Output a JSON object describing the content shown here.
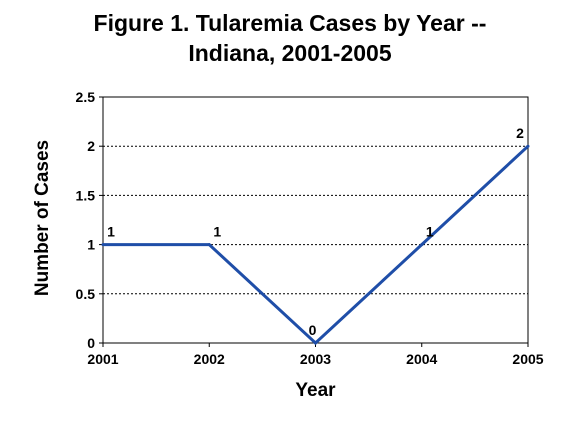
{
  "chart_data": {
    "type": "line",
    "title_line1": "Figure 1. Tularemia Cases by Year --",
    "title_line2": "Indiana, 2001-2005",
    "xlabel": "Year",
    "ylabel": "Number of Cases",
    "x": [
      "2001",
      "2002",
      "2003",
      "2004",
      "2005"
    ],
    "series": [
      {
        "values": [
          1,
          1,
          0,
          1,
          2
        ],
        "data_labels": [
          "1",
          "1",
          "0",
          "1",
          "2"
        ],
        "color": "#1f4ea8"
      }
    ],
    "ylim": [
      0,
      2.5
    ],
    "yticks": [
      "0",
      "0.5",
      "1",
      "1.5",
      "2",
      "2.5"
    ],
    "ytick_values": [
      0,
      0.5,
      1,
      1.5,
      2,
      2.5
    ],
    "grid": "horizontal dotted",
    "legend": "none"
  }
}
